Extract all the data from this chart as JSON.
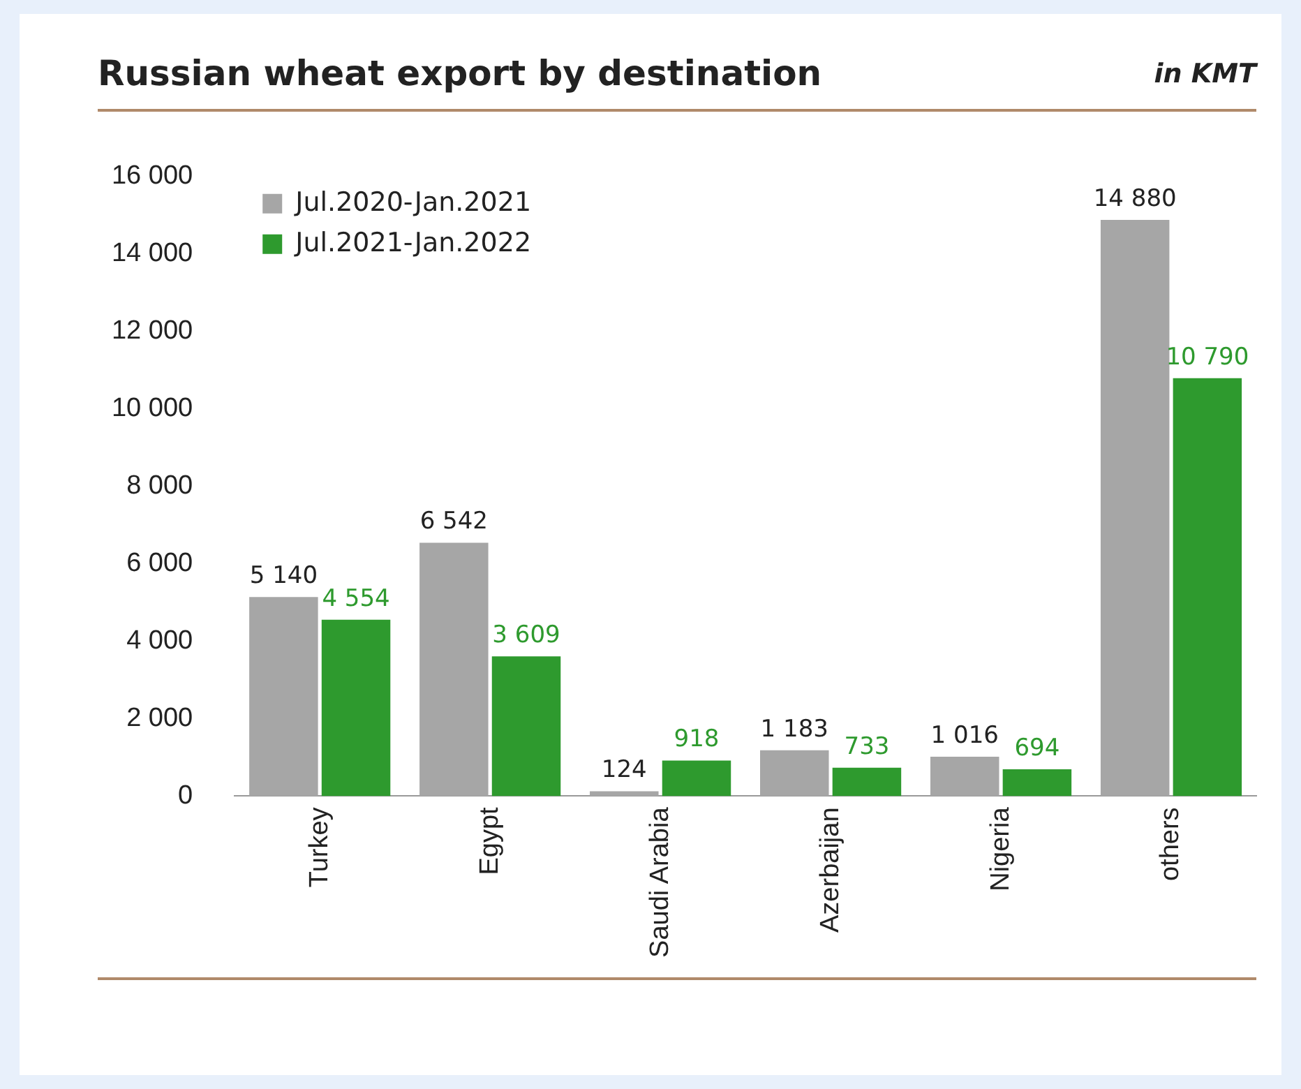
{
  "chart_data": {
    "type": "bar",
    "title": "Russian wheat export by destination",
    "subtitle": "in KMT",
    "categories": [
      "Turkey",
      "Egypt",
      "Saudi Arabia",
      "Azerbaijan",
      "Nigeria",
      "others"
    ],
    "series": [
      {
        "name": "Jul.2020-Jan.2021",
        "color": "#a6a6a6",
        "values": [
          5140,
          6542,
          124,
          1183,
          1016,
          14880
        ]
      },
      {
        "name": "Jul.2021-Jan.2022",
        "color": "#2e9a2e",
        "values": [
          4554,
          3609,
          918,
          733,
          694,
          10790
        ]
      }
    ],
    "ylim": [
      0,
      16000
    ],
    "yticks": [
      {
        "value": 0,
        "label": "0"
      },
      {
        "value": 2000,
        "label": "2 000"
      },
      {
        "value": 4000,
        "label": "4 000"
      },
      {
        "value": 6000,
        "label": "6 000"
      },
      {
        "value": 8000,
        "label": "8 000"
      },
      {
        "value": 10000,
        "label": "10 000"
      },
      {
        "value": 12000,
        "label": "12 000"
      },
      {
        "value": 14000,
        "label": "14 000"
      },
      {
        "value": 16000,
        "label": "16 000"
      }
    ],
    "grid": false,
    "legend": "top left",
    "data_labels": true
  }
}
